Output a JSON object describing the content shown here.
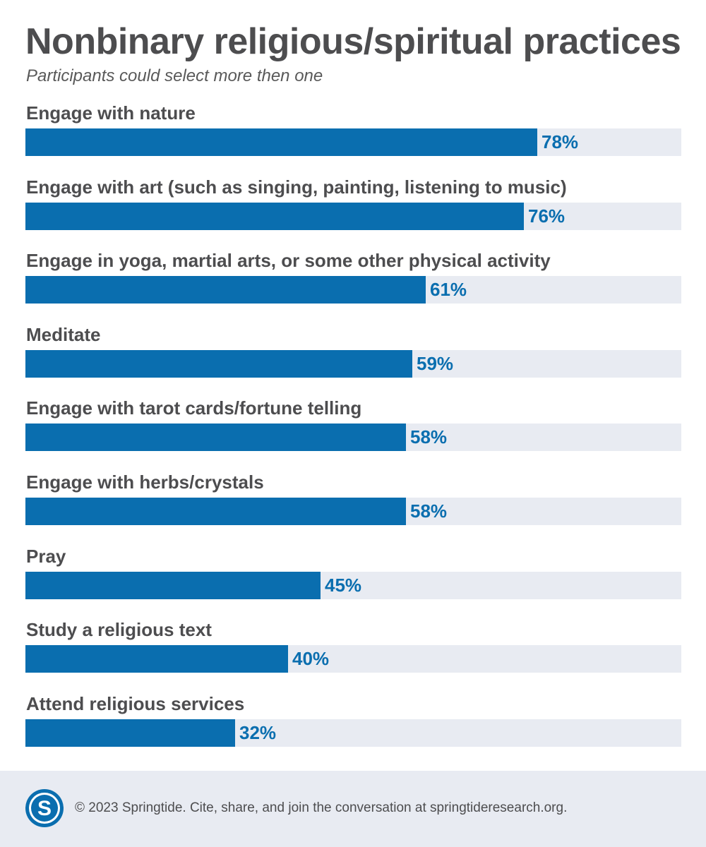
{
  "chart_data": {
    "type": "bar",
    "orientation": "horizontal",
    "title": "Nonbinary religious/spiritual practices",
    "subtitle": "Participants could select more then one",
    "categories": [
      "Engage with nature",
      "Engage with art (such as singing, painting, listening to music)",
      "Engage in yoga, martial arts, or some other physical activity",
      "Meditate",
      "Engage with tarot cards/fortune telling",
      "Engage with herbs/crystals",
      "Pray",
      "Study a religious text",
      "Attend religious services"
    ],
    "values": [
      78,
      76,
      61,
      59,
      58,
      58,
      45,
      40,
      32
    ],
    "value_labels": [
      "78%",
      "76%",
      "61%",
      "59%",
      "58%",
      "58%",
      "45%",
      "40%",
      "32%"
    ],
    "xlim": [
      0,
      100
    ],
    "unit": "%",
    "grid": false,
    "legend": "none",
    "colors": {
      "bar": "#0a6eaf",
      "track": "#e8ebf2",
      "label": "#4d4d4f",
      "value": "#0a6eaf"
    }
  },
  "footer": {
    "logo_icon": "springtide-s-logo-icon",
    "text": "© 2023 Springtide. Cite, share, and join the conversation at springtideresearch.org."
  }
}
